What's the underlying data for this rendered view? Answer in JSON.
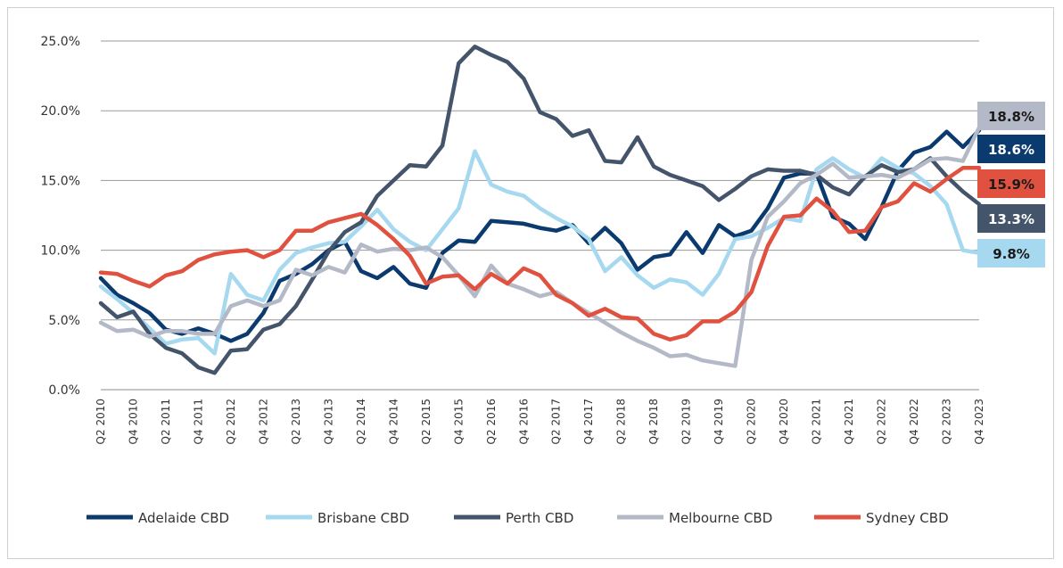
{
  "chart_data": {
    "type": "line",
    "title": "",
    "xlabel": "",
    "ylabel": "",
    "ylim": [
      0,
      25
    ],
    "y_ticks": [
      "0.0%",
      "5.0%",
      "10.0%",
      "15.0%",
      "20.0%",
      "25.0%"
    ],
    "grid": "horizontal",
    "legend_position": "bottom",
    "x": [
      "Q2 2010",
      "Q3 2010",
      "Q4 2010",
      "Q1 2011",
      "Q2 2011",
      "Q3 2011",
      "Q4 2011",
      "Q1 2012",
      "Q2 2012",
      "Q3 2012",
      "Q4 2012",
      "Q1 2013",
      "Q2 2013",
      "Q3 2013",
      "Q4 2013",
      "Q1 2014",
      "Q2 2014",
      "Q3 2014",
      "Q4 2014",
      "Q1 2015",
      "Q2 2015",
      "Q3 2015",
      "Q4 2015",
      "Q1 2016",
      "Q2 2016",
      "Q3 2016",
      "Q4 2016",
      "Q1 2017",
      "Q2 2017",
      "Q3 2017",
      "Q4 2017",
      "Q1 2018",
      "Q2 2018",
      "Q3 2018",
      "Q4 2018",
      "Q1 2019",
      "Q2 2019",
      "Q3 2019",
      "Q4 2019",
      "Q1 2020",
      "Q2 2020",
      "Q3 2020",
      "Q4 2020",
      "Q1 2021",
      "Q2 2021",
      "Q3 2021",
      "Q4 2021",
      "Q1 2022",
      "Q2 2022",
      "Q3 2022",
      "Q4 2022",
      "Q1 2023",
      "Q2 2023",
      "Q3 2023",
      "Q4 2023"
    ],
    "x_tick_labels": [
      "Q2 2010",
      "Q4 2010",
      "Q2 2011",
      "Q4 2011",
      "Q2 2012",
      "Q4 2012",
      "Q2 2013",
      "Q4 2013",
      "Q2 2014",
      "Q4 2014",
      "Q2 2015",
      "Q4 2015",
      "Q2 2016",
      "Q4 2016",
      "Q2 2017",
      "Q4 2017",
      "Q2 2018",
      "Q4 2018",
      "Q2 2019",
      "Q4 2019",
      "Q2 2020",
      "Q4 2020",
      "Q2 2021",
      "Q4 2021",
      "Q2 2022",
      "Q4 2022",
      "Q2 2023",
      "Q4 2023"
    ],
    "series": [
      {
        "name": "Adelaide CBD",
        "color": "#0b3a6e",
        "values": [
          8.0,
          6.8,
          6.2,
          5.5,
          4.3,
          4.0,
          4.4,
          4.0,
          3.5,
          4.0,
          5.5,
          7.8,
          8.3,
          9.0,
          10.0,
          10.6,
          8.5,
          8.0,
          8.8,
          7.6,
          7.3,
          9.8,
          10.7,
          10.6,
          12.1,
          12.0,
          11.9,
          11.6,
          11.4,
          11.8,
          10.5,
          11.6,
          10.5,
          8.6,
          9.5,
          9.7,
          11.3,
          9.8,
          11.8,
          11.0,
          11.4,
          13.0,
          15.2,
          15.5,
          15.5,
          12.4,
          11.9,
          10.8,
          13.1,
          15.7,
          17.0,
          17.4,
          18.5,
          17.4,
          18.6
        ],
        "end_label": "18.6%"
      },
      {
        "name": "Brisbane CBD",
        "color": "#a6d9f0",
        "values": [
          7.4,
          6.5,
          5.5,
          4.4,
          3.3,
          3.6,
          3.7,
          2.6,
          8.3,
          6.8,
          6.4,
          8.6,
          9.8,
          10.2,
          10.5,
          10.6,
          11.7,
          12.9,
          11.5,
          10.6,
          10.0,
          11.5,
          13.0,
          17.1,
          14.7,
          14.2,
          13.9,
          13.0,
          12.3,
          11.7,
          10.8,
          8.5,
          9.5,
          8.2,
          7.3,
          7.9,
          7.7,
          6.8,
          8.3,
          10.8,
          11.0,
          11.6,
          12.3,
          12.1,
          15.8,
          16.6,
          15.8,
          15.2,
          16.6,
          15.9,
          15.5,
          14.6,
          13.3,
          10.0,
          9.8
        ],
        "end_label": "9.8%"
      },
      {
        "name": "Perth CBD",
        "color": "#44546a",
        "values": [
          6.2,
          5.2,
          5.6,
          4.0,
          3.0,
          2.6,
          1.6,
          1.2,
          2.8,
          2.9,
          4.3,
          4.7,
          6.0,
          7.9,
          9.9,
          11.3,
          12.0,
          13.9,
          15.0,
          16.1,
          16.0,
          17.5,
          23.4,
          24.6,
          24.0,
          23.5,
          22.3,
          19.9,
          19.4,
          18.2,
          18.6,
          16.4,
          16.3,
          18.1,
          16.0,
          15.4,
          15.0,
          14.6,
          13.6,
          14.4,
          15.3,
          15.8,
          15.7,
          15.7,
          15.4,
          14.5,
          14.0,
          15.3,
          16.1,
          15.6,
          15.8,
          16.6,
          15.3,
          14.2,
          13.3
        ],
        "end_label": "13.3%"
      },
      {
        "name": "Melbourne CBD",
        "color": "#b4b9c7",
        "values": [
          4.8,
          4.2,
          4.3,
          3.8,
          4.2,
          4.2,
          4.0,
          4.0,
          6.0,
          6.4,
          6.0,
          6.4,
          8.6,
          8.2,
          8.8,
          8.4,
          10.4,
          9.9,
          10.1,
          10.0,
          10.2,
          9.5,
          8.2,
          6.7,
          8.9,
          7.6,
          7.2,
          6.7,
          7.0,
          6.2,
          5.5,
          4.8,
          4.1,
          3.5,
          3.0,
          2.4,
          2.5,
          2.1,
          1.9,
          1.7,
          9.3,
          12.4,
          13.5,
          14.8,
          15.4,
          16.2,
          15.2,
          15.3,
          15.4,
          15.2,
          15.8,
          16.5,
          16.6,
          16.4,
          18.8
        ],
        "end_label": "18.8%"
      },
      {
        "name": "Sydney CBD",
        "color": "#e0523f",
        "values": [
          8.4,
          8.3,
          7.8,
          7.4,
          8.2,
          8.5,
          9.3,
          9.7,
          9.9,
          10.0,
          9.5,
          10.0,
          11.4,
          11.4,
          12.0,
          12.3,
          12.6,
          11.8,
          10.8,
          9.6,
          7.6,
          8.1,
          8.2,
          7.2,
          8.3,
          7.6,
          8.7,
          8.2,
          6.8,
          6.2,
          5.3,
          5.8,
          5.2,
          5.1,
          4.0,
          3.6,
          3.9,
          4.9,
          4.9,
          5.6,
          7.0,
          10.3,
          12.4,
          12.5,
          13.7,
          12.8,
          11.3,
          11.4,
          13.1,
          13.5,
          14.8,
          14.2,
          15.1,
          15.9,
          15.9
        ],
        "end_label": "15.9%"
      }
    ],
    "end_labels_order": [
      {
        "series": "Melbourne CBD",
        "text": "18.8%",
        "bg": "#b4b9c7",
        "fg": "#1a1a1a"
      },
      {
        "series": "Adelaide CBD",
        "text": "18.6%",
        "bg": "#0b3a6e",
        "fg": "#ffffff"
      },
      {
        "series": "Sydney CBD",
        "text": "15.9%",
        "bg": "#e0523f",
        "fg": "#1a1a1a"
      },
      {
        "series": "Perth CBD",
        "text": "13.3%",
        "bg": "#44546a",
        "fg": "#ffffff"
      },
      {
        "series": "Brisbane CBD",
        "text": "9.8%",
        "bg": "#a6d9f0",
        "fg": "#1a1a1a"
      }
    ]
  }
}
